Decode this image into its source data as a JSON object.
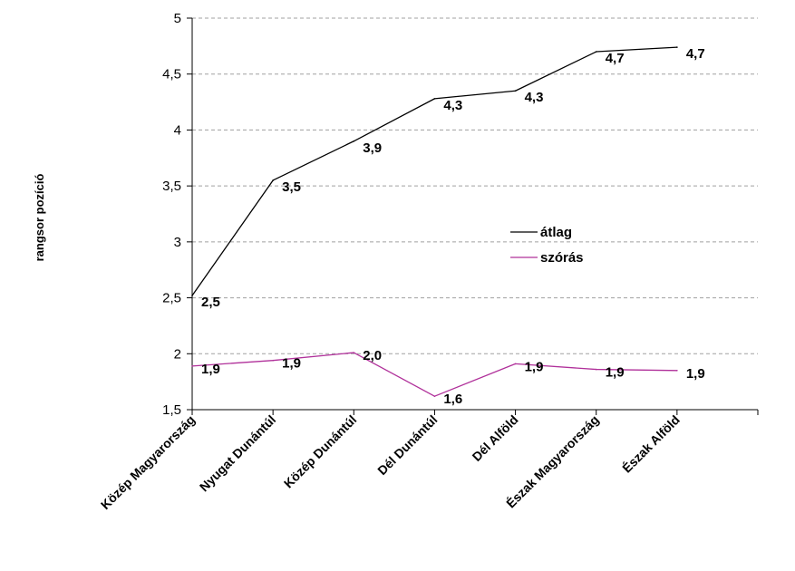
{
  "chart_data": {
    "type": "line",
    "title": "",
    "xlabel": "",
    "ylabel": "rangsor pozíció",
    "ylim": [
      1.5,
      5
    ],
    "yticks": [
      "1,5",
      "2",
      "2,5",
      "3",
      "3,5",
      "4",
      "4,5",
      "5"
    ],
    "grid": true,
    "legend_position": "right-center",
    "categories": [
      "Közép Magyarország",
      "Nyugat Dunántúl",
      "Közép Dunántúl",
      "Dél Dunántúl",
      "Dél Alföld",
      "Észak Magyarország",
      "Észak Alföld"
    ],
    "series": [
      {
        "name": "átlag",
        "color": "#000000",
        "values": [
          2.52,
          3.55,
          3.9,
          4.28,
          4.35,
          4.7,
          4.74
        ],
        "labels": [
          "2,5",
          "3,5",
          "3,9",
          "4,3",
          "4,3",
          "4,7",
          "4,7"
        ]
      },
      {
        "name": "szórás",
        "color": "#b0309a",
        "values": [
          1.89,
          1.94,
          2.01,
          1.62,
          1.91,
          1.86,
          1.85
        ],
        "labels": [
          "1,9",
          "1,9",
          "2,0",
          "1,6",
          "1,9",
          "1,9",
          "1,9"
        ]
      }
    ]
  }
}
